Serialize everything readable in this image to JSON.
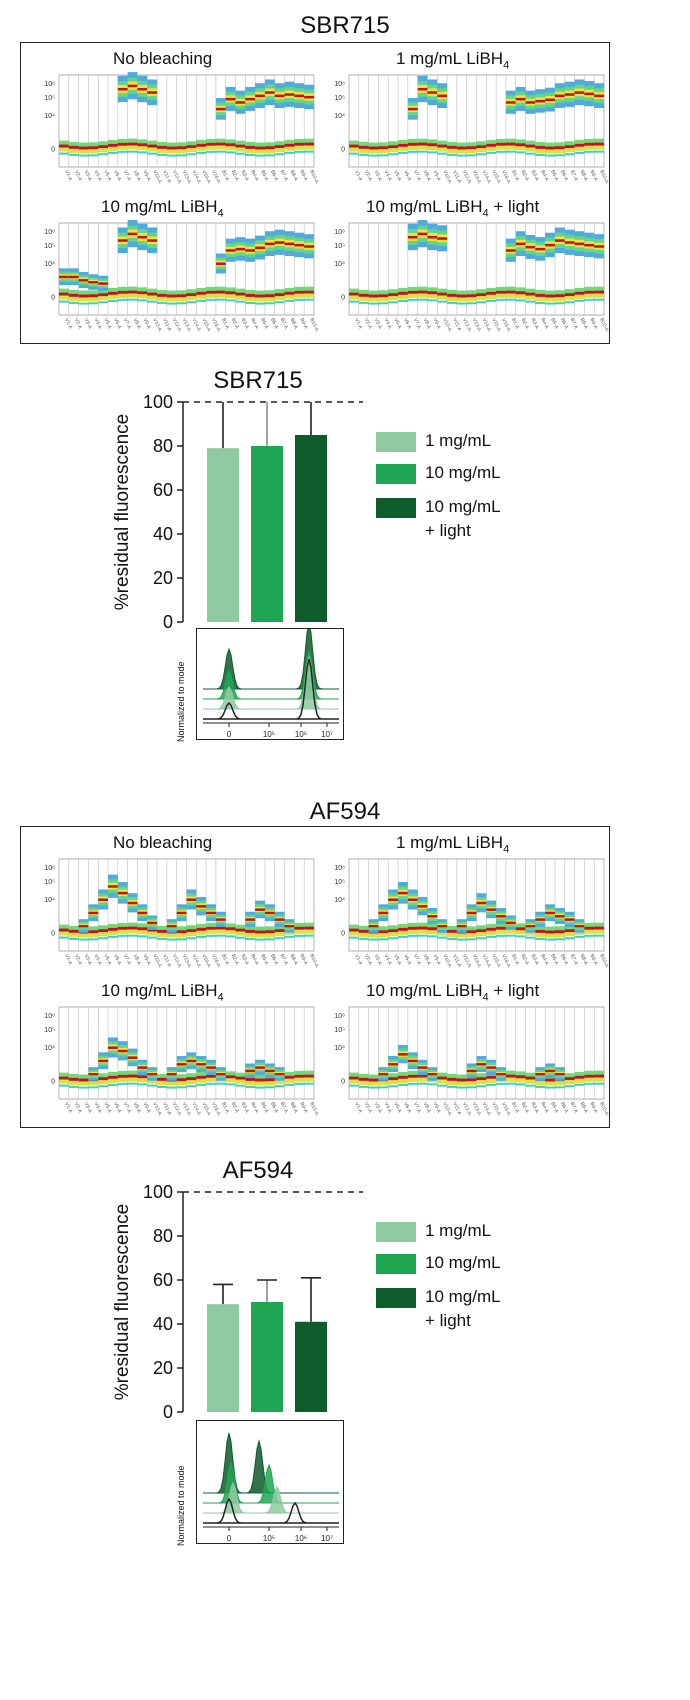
{
  "colors": {
    "bar_1mg": "#8ec9a1",
    "bar_10mg": "#1ea652",
    "bar_light": "#0e5b2b",
    "frame": "#222222",
    "heat_low": "#7ab6f5",
    "heat_mid": "#3dd6a8",
    "heat_high": "#f7e642",
    "heat_peak": "#c0151c"
  },
  "sections": [
    {
      "title": "SBR715",
      "panels": [
        {
          "label": "No bleaching",
          "sub": ""
        },
        {
          "label": "1 mg/mL LiBH",
          "sub": "4"
        },
        {
          "label": "10 mg/mL LiBH",
          "sub": "4"
        },
        {
          "label": "10 mg/mL LiBH",
          "sub": "4",
          "suffix": " + light"
        }
      ],
      "heatmap_y_ticks": [
        "10⁶",
        "10⁵",
        "10⁴",
        "0"
      ]
    },
    {
      "title": "AF594",
      "panels": [
        {
          "label": "No bleaching",
          "sub": ""
        },
        {
          "label": "1 mg/mL LiBH",
          "sub": "4"
        },
        {
          "label": "10 mg/mL LiBH",
          "sub": "4"
        },
        {
          "label": "10 mg/mL LiBH",
          "sub": "4",
          "suffix": " + light"
        }
      ],
      "heatmap_y_ticks": [
        "10⁶",
        "10⁵",
        "10⁴",
        "0"
      ]
    }
  ],
  "legend": {
    "items": [
      "1 mg/mL",
      "10 mg/mL",
      "10 mg/mL",
      "+ light"
    ]
  },
  "inset": {
    "ylabel": "Normalized to mode",
    "x_ticks": [
      "0",
      "10⁵",
      "10⁶",
      "10⁷"
    ]
  },
  "chart_data": [
    {
      "type": "bar",
      "title": "SBR715",
      "ylabel": "%residual fluorescence",
      "ylim": [
        0,
        100
      ],
      "yticks": [
        0,
        20,
        40,
        60,
        80,
        100
      ],
      "reference_line": 100,
      "categories": [
        "1 mg/mL",
        "10 mg/mL",
        "10 mg/mL + light"
      ],
      "values": [
        79,
        80,
        85
      ],
      "error_upper": [
        100,
        100,
        100
      ]
    },
    {
      "type": "bar",
      "title": "AF594",
      "ylabel": "%residual fluorescence",
      "ylim": [
        0,
        100
      ],
      "yticks": [
        0,
        20,
        40,
        60,
        80,
        100
      ],
      "reference_line": 100,
      "categories": [
        "1 mg/mL",
        "10 mg/mL",
        "10 mg/mL + light"
      ],
      "values": [
        49,
        50,
        41
      ],
      "error_upper": [
        58,
        60,
        61
      ]
    }
  ]
}
